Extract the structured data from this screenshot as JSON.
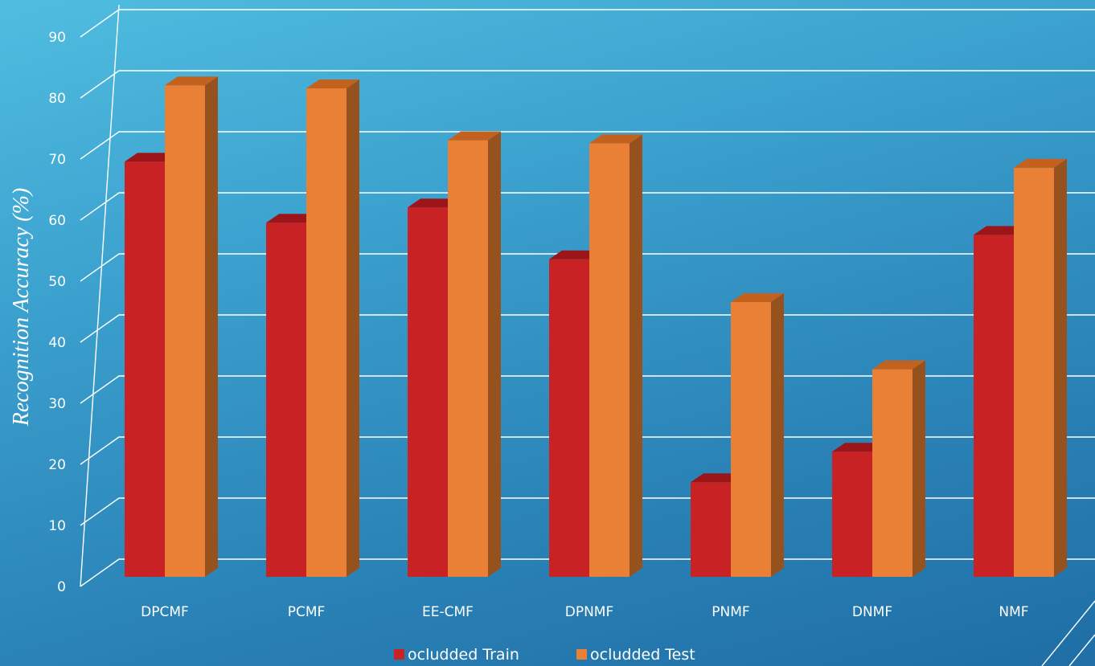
{
  "colors": {
    "train_front": "#c92225",
    "train_top": "#9b1519",
    "train_side": "#8a1518",
    "test_front": "#ea7f36",
    "test_top": "#c3621f",
    "test_side": "#95521f",
    "grid": "#ffffff"
  },
  "chart_data": {
    "type": "bar",
    "style": "3d-clustered-column",
    "categories": [
      "DPCMF",
      "PCMF",
      "EE-CMF",
      "DPNMF",
      "PNMF",
      "DNMF",
      "NMF"
    ],
    "series": [
      {
        "name": "ocludded Train",
        "values": [
          68,
          58,
          60.5,
          52,
          15.5,
          20.5,
          56
        ]
      },
      {
        "name": "ocludded Test",
        "values": [
          80.5,
          80,
          71.5,
          71,
          45,
          34,
          67
        ]
      }
    ],
    "ylabel": "Recognition Accuracy (%)",
    "xlabel": "",
    "ylim": [
      0,
      90
    ],
    "yticks": [
      "0",
      "10",
      "20",
      "30",
      "40",
      "50",
      "60",
      "70",
      "80",
      "90"
    ],
    "grid": true,
    "legend_position": "bottom"
  }
}
